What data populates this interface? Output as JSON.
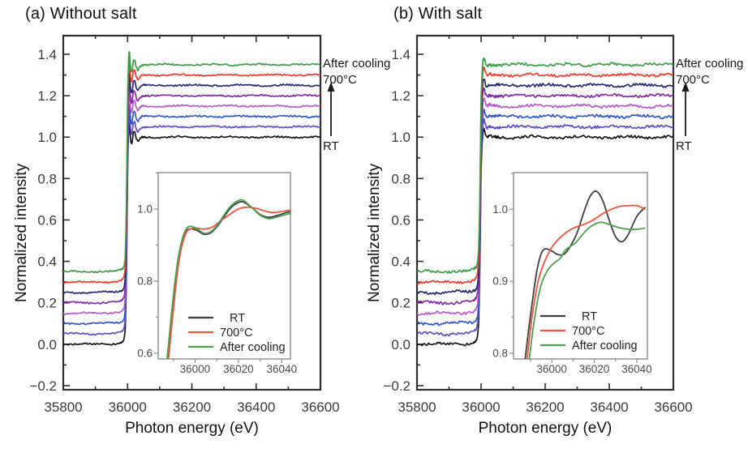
{
  "chart_data": {
    "type": "line",
    "description": "Normalized X-ray absorption spectra vs photon energy, two panels with zoom insets",
    "style": {
      "background": "#ffffff",
      "axis_color": "#2e2e2e",
      "tick_label_color": "#3b3b3b",
      "inset_frame_color": "#8a8a8a",
      "inset_label_color": "#4a4a4a",
      "arrow_color": "#1a1a1a"
    },
    "panels": [
      {
        "id": "a",
        "title": "(a) Without salt",
        "xlabel": "Photon energy (eV)",
        "ylabel": "Normalized intensity",
        "xlim": [
          35800,
          36600
        ],
        "ylim": [
          -0.22,
          1.49
        ],
        "xticks": [
          35800,
          36000,
          36200,
          36400,
          36600
        ],
        "yticks": [
          -0.2,
          0.0,
          0.2,
          0.4,
          0.6,
          0.8,
          1.0,
          1.2,
          1.4
        ],
        "x_minor_step": 100,
        "y_minor_step": 0.1,
        "annotations": {
          "after_cooling": "After cooling",
          "temp": "700°C",
          "rt": "RT"
        },
        "noise": 0.0035,
        "series": [
          {
            "label": "RT",
            "color": "#141414",
            "offset": 0.0
          },
          {
            "label": "",
            "color": "#5c4ec0",
            "offset": 0.05
          },
          {
            "label": "",
            "color": "#3056c8",
            "offset": 0.1
          },
          {
            "label": "",
            "color": "#b45ac8",
            "offset": 0.15
          },
          {
            "label": "",
            "color": "#8428a8",
            "offset": 0.2
          },
          {
            "label": "",
            "color": "#262a68",
            "offset": 0.25
          },
          {
            "label": "700°C",
            "color": "#e73c2e",
            "offset": 0.3
          },
          {
            "label": "After cooling",
            "color": "#3a9c46",
            "offset": 0.35
          }
        ],
        "base_curve": {
          "x": [
            35800,
            35880,
            35930,
            35960,
            35975,
            35985,
            35990,
            35993,
            35996,
            35998,
            36000,
            36002,
            36004,
            36006,
            36008,
            36011,
            36014,
            36018,
            36022,
            36027,
            36032,
            36038,
            36045,
            36055,
            36070,
            36100,
            36150,
            36250,
            36350,
            36450,
            36550,
            36600
          ],
          "y": [
            0,
            0,
            0.001,
            0.003,
            0.006,
            0.012,
            0.03,
            0.08,
            0.28,
            0.55,
            0.82,
            0.97,
            1.05,
            1.06,
            1.01,
            0.965,
            0.97,
            1.02,
            1.025,
            0.99,
            0.975,
            0.99,
            1.0,
            1.0,
            1.0,
            1.0,
            1.0,
            1.0,
            1.0,
            1.0,
            1.0,
            1.0
          ]
        },
        "inset": {
          "xlim": [
            35983,
            36044
          ],
          "ylim": [
            0.584,
            1.101
          ],
          "xticks": [
            36000,
            36020,
            36040
          ],
          "yticks": [
            0.6,
            0.8,
            1.0
          ],
          "x_minor_step": 10,
          "y_minor_step": 0.1,
          "series": [
            {
              "label": "RT",
              "color": "#3f3f3f",
              "x": [
                35986,
                35988,
                35990,
                35992,
                35994,
                35996,
                35998,
                36001,
                36004,
                36007,
                36010,
                36013,
                36016,
                36019,
                36022,
                36026,
                36030,
                36034,
                36038,
                36042,
                36044
              ],
              "y": [
                0.5,
                0.62,
                0.74,
                0.84,
                0.905,
                0.938,
                0.945,
                0.94,
                0.93,
                0.933,
                0.95,
                0.975,
                1.0,
                1.015,
                1.02,
                1.005,
                0.985,
                0.977,
                0.982,
                0.99,
                0.992
              ]
            },
            {
              "label": "700°C",
              "color": "#e8573f",
              "x": [
                35986,
                35988,
                35990,
                35992,
                35994,
                35996,
                35998,
                36001,
                36004,
                36008,
                36012,
                36016,
                36020,
                36024,
                36028,
                36032,
                36036,
                36040,
                36044
              ],
              "y": [
                0.48,
                0.6,
                0.72,
                0.83,
                0.9,
                0.935,
                0.945,
                0.947,
                0.944,
                0.95,
                0.968,
                0.985,
                1.0,
                1.005,
                1.002,
                0.995,
                0.99,
                0.993,
                0.997
              ]
            },
            {
              "label": "After cooling",
              "color": "#4f9e52",
              "x": [
                35986,
                35988,
                35990,
                35992,
                35994,
                35996,
                35998,
                36001,
                36004,
                36007,
                36010,
                36013,
                36016,
                36019,
                36022,
                36026,
                36030,
                36034,
                36038,
                36042,
                36044
              ],
              "y": [
                0.52,
                0.64,
                0.76,
                0.855,
                0.915,
                0.945,
                0.952,
                0.945,
                0.933,
                0.936,
                0.953,
                0.98,
                1.005,
                1.02,
                1.025,
                1.005,
                0.983,
                0.973,
                0.978,
                0.985,
                0.987
              ]
            }
          ]
        }
      },
      {
        "id": "b",
        "title": "(b) With salt",
        "xlabel": "Photon energy (eV)",
        "ylabel": "Normalized intensity",
        "xlim": [
          35800,
          36600
        ],
        "ylim": [
          -0.22,
          1.49
        ],
        "xticks": [
          35800,
          36000,
          36200,
          36400,
          36600
        ],
        "yticks": [
          -0.2,
          0.0,
          0.2,
          0.4,
          0.6,
          0.8,
          1.0,
          1.2,
          1.4
        ],
        "x_minor_step": 100,
        "y_minor_step": 0.1,
        "annotations": {
          "after_cooling": "After cooling",
          "temp": "700°C",
          "rt": "RT"
        },
        "noise": 0.006,
        "series": [
          {
            "label": "RT",
            "color": "#141414",
            "offset": 0.0
          },
          {
            "label": "",
            "color": "#5c4ec0",
            "offset": 0.05
          },
          {
            "label": "",
            "color": "#3056c8",
            "offset": 0.1
          },
          {
            "label": "",
            "color": "#b45ac8",
            "offset": 0.15
          },
          {
            "label": "",
            "color": "#8428a8",
            "offset": 0.2
          },
          {
            "label": "",
            "color": "#262a68",
            "offset": 0.25
          },
          {
            "label": "700°C",
            "color": "#e73c2e",
            "offset": 0.3
          },
          {
            "label": "After cooling",
            "color": "#3a9c46",
            "offset": 0.35
          }
        ],
        "base_curve": {
          "x": [
            35800,
            35880,
            35930,
            35960,
            35975,
            35985,
            35990,
            35993,
            35996,
            35998,
            36000,
            36003,
            36006,
            36009,
            36012,
            36016,
            36020,
            36026,
            36032,
            36040,
            36055,
            36080,
            36120,
            36200,
            36300,
            36400,
            36500,
            36600
          ],
          "y": [
            0,
            0,
            0.002,
            0.004,
            0.008,
            0.018,
            0.05,
            0.12,
            0.33,
            0.58,
            0.83,
            0.96,
            1.02,
            1.035,
            1.02,
            1.0,
            0.995,
            1.005,
            1.0,
            1.0,
            1.0,
            1.0,
            1.0,
            1.0,
            1.0,
            1.0,
            1.0,
            1.0
          ]
        },
        "inset": {
          "xlim": [
            35982,
            36045
          ],
          "ylim": [
            0.792,
            1.051
          ],
          "xticks": [
            36000,
            36020,
            36040
          ],
          "yticks": [
            0.8,
            0.9,
            1.0
          ],
          "x_minor_step": 10,
          "y_minor_step": 0.05,
          "series": [
            {
              "label": "RT",
              "color": "#3f3f3f",
              "x": [
                35987,
                35989,
                35991,
                35993,
                35995,
                35997,
                36000,
                36003,
                36006,
                36009,
                36012,
                36015,
                36018,
                36021,
                36024,
                36027,
                36030,
                36033,
                36036,
                36040,
                36044
              ],
              "y": [
                0.78,
                0.83,
                0.875,
                0.915,
                0.938,
                0.945,
                0.942,
                0.937,
                0.938,
                0.95,
                0.968,
                0.995,
                1.018,
                1.025,
                1.012,
                0.985,
                0.962,
                0.955,
                0.965,
                0.99,
                1.003
              ]
            },
            {
              "label": "700°C",
              "color": "#e8573f",
              "x": [
                35988,
                35990,
                35992,
                35994,
                35997,
                36000,
                36003,
                36006,
                36009,
                36012,
                36016,
                36020,
                36024,
                36028,
                36032,
                36036,
                36040,
                36044
              ],
              "y": [
                0.78,
                0.835,
                0.875,
                0.905,
                0.93,
                0.947,
                0.958,
                0.966,
                0.972,
                0.976,
                0.98,
                0.986,
                0.994,
                1.0,
                1.004,
                1.005,
                1.005,
                1.0
              ]
            },
            {
              "label": "After cooling",
              "color": "#4f9e52",
              "x": [
                35989,
                35991,
                35993,
                35995,
                35998,
                36001,
                36004,
                36006,
                36008,
                36011,
                36014,
                36017,
                36020,
                36023,
                36026,
                36030,
                36034,
                36038,
                36042,
                36044
              ],
              "y": [
                0.78,
                0.83,
                0.868,
                0.895,
                0.915,
                0.925,
                0.932,
                0.942,
                0.947,
                0.953,
                0.963,
                0.973,
                0.979,
                0.982,
                0.98,
                0.976,
                0.973,
                0.972,
                0.973,
                0.974
              ]
            }
          ]
        }
      }
    ]
  }
}
